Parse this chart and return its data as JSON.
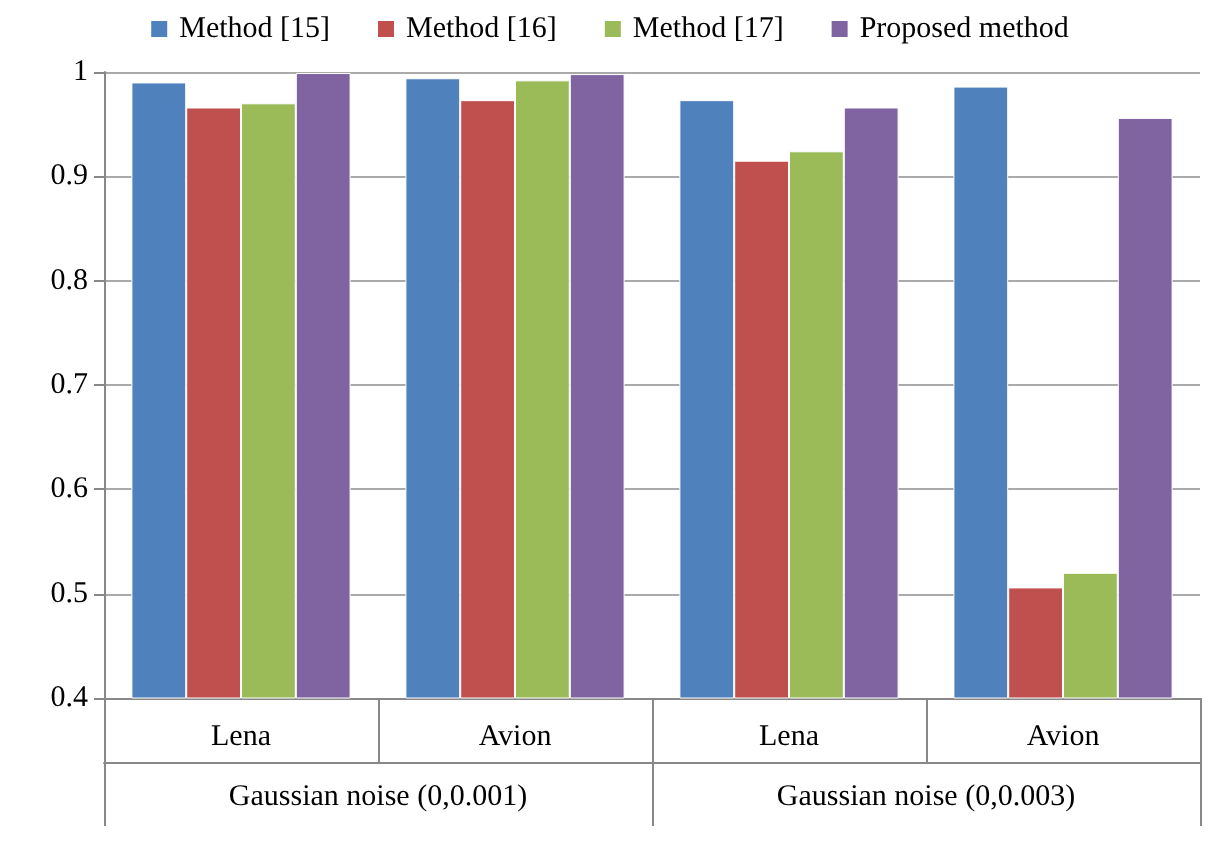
{
  "chart_data": {
    "type": "bar",
    "categories": [
      "Lena",
      "Avion",
      "Lena",
      "Avion"
    ],
    "series": [
      {
        "name": "Method [15]",
        "color": "#4f81bd",
        "values": [
          0.99,
          0.994,
          0.973,
          0.986
        ]
      },
      {
        "name": "Method [16]",
        "color": "#c0504d",
        "values": [
          0.966,
          0.973,
          0.915,
          0.506
        ]
      },
      {
        "name": "Method [17]",
        "color": "#9bbb59",
        "values": [
          0.97,
          0.992,
          0.924,
          0.52
        ]
      },
      {
        "name": "Proposed method",
        "color": "#8064a2",
        "values": [
          0.999,
          0.998,
          0.966,
          0.956
        ]
      }
    ],
    "annotations": [
      "Gaussian noise (0,0.001)",
      "Gaussian noise (0,0.003)"
    ],
    "ylim": [
      0.4,
      1
    ],
    "yticks": [
      0.4,
      0.5,
      0.6,
      0.7,
      0.8,
      0.9,
      1
    ],
    "grid": "y",
    "legend": "top"
  }
}
